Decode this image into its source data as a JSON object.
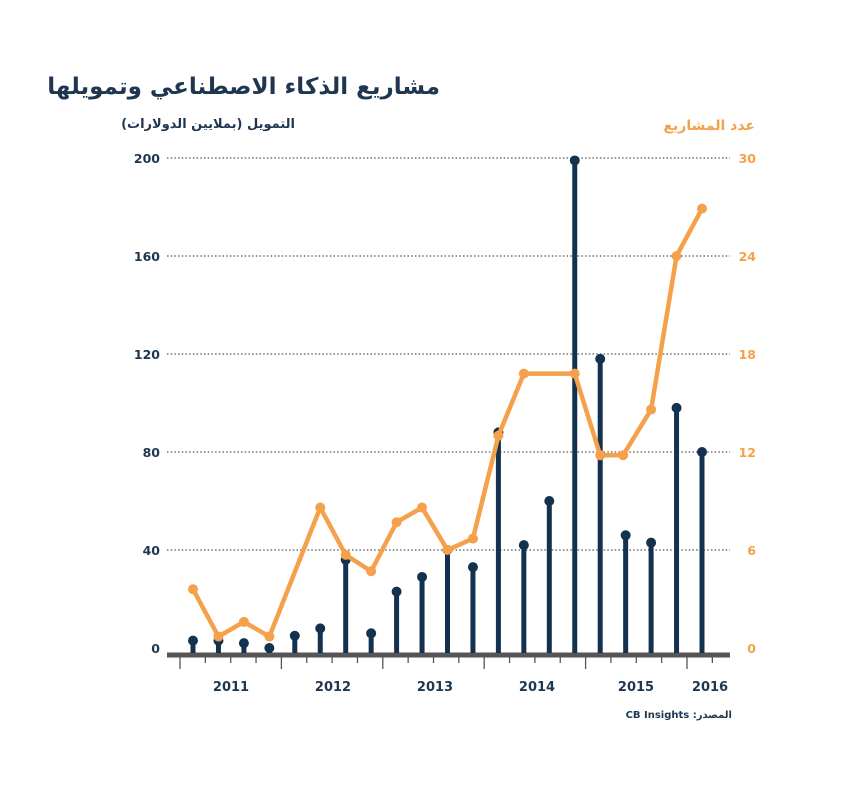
{
  "chart_data": {
    "type": "line",
    "title": "مشاريع الذكاء الاصطناعي وتمويلها",
    "ylabel_left": "التمويل (بملايين الدولارات)",
    "ylabel_right": "عدد المشاريع",
    "source": "المصدر: CB Insights",
    "xlabel": "",
    "x_tick_labels": [
      "2011",
      "2012",
      "2013",
      "2014",
      "2015",
      "2016"
    ],
    "y_left_ticks": [
      "0",
      "40",
      "80",
      "120",
      "160",
      "200"
    ],
    "y_right_ticks": [
      "0",
      "6",
      "12",
      "18",
      "24",
      "30"
    ],
    "ylim_left": [
      0,
      200
    ],
    "ylim_right": [
      0,
      30
    ],
    "grid": true,
    "quarters": 21,
    "series": [
      {
        "name": "التمويل (بملايين الدولارات)",
        "kind": "stem",
        "axis": "left",
        "color": "#12324f",
        "points": [
          {
            "q": 0,
            "v": 3
          },
          {
            "q": 1,
            "v": 3
          },
          {
            "q": 2,
            "v": 2
          },
          {
            "q": 3,
            "v": 0
          },
          {
            "q": 4,
            "v": 5
          },
          {
            "q": 5,
            "v": 8
          },
          {
            "q": 6,
            "v": 36
          },
          {
            "q": 7,
            "v": 6
          },
          {
            "q": 8,
            "v": 23
          },
          {
            "q": 9,
            "v": 29
          },
          {
            "q": 10,
            "v": 40
          },
          {
            "q": 11,
            "v": 33
          },
          {
            "q": 12,
            "v": 88
          },
          {
            "q": 13,
            "v": 42
          },
          {
            "q": 14,
            "v": 60
          },
          {
            "q": 15,
            "v": 199
          },
          {
            "q": 16,
            "v": 118
          },
          {
            "q": 17,
            "v": 46
          },
          {
            "q": 18,
            "v": 43
          },
          {
            "q": 19,
            "v": 98
          },
          {
            "q": 20,
            "v": 80
          }
        ]
      },
      {
        "name": "عدد المشاريع",
        "kind": "line",
        "axis": "right",
        "color": "#f5a04a",
        "points": [
          {
            "q": 0,
            "v": 3.6
          },
          {
            "q": 1,
            "v": 0.7
          },
          {
            "q": 2,
            "v": 1.6
          },
          {
            "q": 3,
            "v": 0.7
          },
          {
            "q": 5,
            "v": 8.6
          },
          {
            "q": 6,
            "v": 5.7
          },
          {
            "q": 7,
            "v": 4.7
          },
          {
            "q": 8,
            "v": 7.7
          },
          {
            "q": 9,
            "v": 8.6
          },
          {
            "q": 10,
            "v": 6.0
          },
          {
            "q": 11,
            "v": 6.7
          },
          {
            "q": 12,
            "v": 13.0
          },
          {
            "q": 13,
            "v": 16.8
          },
          {
            "q": 15,
            "v": 16.8
          },
          {
            "q": 16,
            "v": 11.8
          },
          {
            "q": 16.9,
            "v": 11.8
          },
          {
            "q": 18,
            "v": 14.6
          },
          {
            "q": 19,
            "v": 24.0
          },
          {
            "q": 20,
            "v": 26.9
          }
        ]
      }
    ]
  }
}
